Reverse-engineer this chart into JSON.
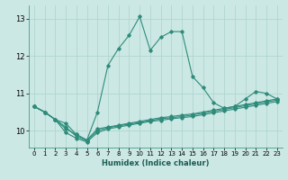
{
  "xlabel": "Humidex (Indice chaleur)",
  "background_color": "#cce8e5",
  "line_color": "#2e8b7a",
  "grid_color": "#b0d5d0",
  "xlim": [
    -0.5,
    23.5
  ],
  "ylim": [
    9.55,
    13.35
  ],
  "xticks": [
    0,
    1,
    2,
    3,
    4,
    5,
    6,
    7,
    8,
    9,
    10,
    11,
    12,
    13,
    14,
    15,
    16,
    17,
    18,
    19,
    20,
    21,
    22,
    23
  ],
  "yticks": [
    10,
    11,
    12,
    13
  ],
  "main_series": [
    10.65,
    10.5,
    10.3,
    10.05,
    9.9,
    9.75,
    10.5,
    11.75,
    12.2,
    12.55,
    13.05,
    12.15,
    12.5,
    12.65,
    12.65,
    11.45,
    11.15,
    10.75,
    10.6,
    10.65,
    10.85,
    11.05,
    11.0,
    10.85
  ],
  "flat_lines": [
    [
      10.65,
      10.5,
      10.3,
      10.2,
      9.9,
      9.75,
      10.05,
      10.1,
      10.15,
      10.2,
      10.25,
      10.3,
      10.35,
      10.38,
      10.42,
      10.45,
      10.5,
      10.55,
      10.6,
      10.65,
      10.7,
      10.75,
      10.8,
      10.85
    ],
    [
      10.65,
      10.5,
      10.3,
      10.1,
      9.85,
      9.73,
      10.0,
      10.08,
      10.13,
      10.18,
      10.22,
      10.27,
      10.32,
      10.35,
      10.38,
      10.42,
      10.47,
      10.52,
      10.57,
      10.62,
      10.67,
      10.72,
      10.77,
      10.82
    ],
    [
      10.65,
      10.5,
      10.3,
      9.95,
      9.8,
      9.7,
      9.95,
      10.05,
      10.1,
      10.15,
      10.2,
      10.25,
      10.28,
      10.32,
      10.35,
      10.38,
      10.43,
      10.48,
      10.53,
      10.58,
      10.63,
      10.68,
      10.73,
      10.78
    ]
  ]
}
